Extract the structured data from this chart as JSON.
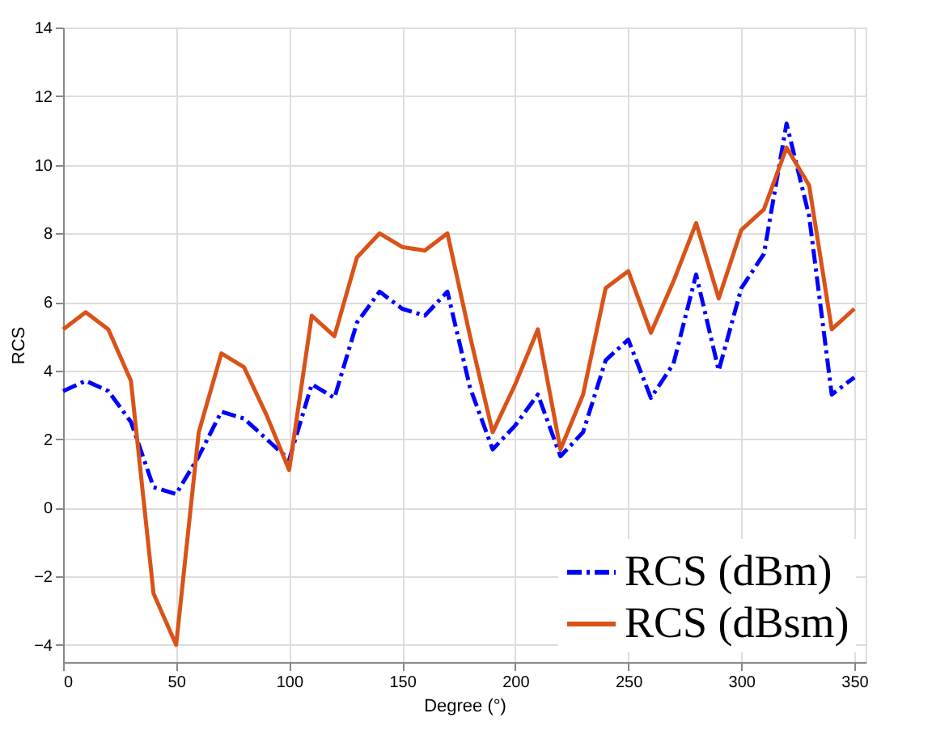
{
  "chart_data": {
    "type": "line",
    "xlabel": "Degree (°)",
    "ylabel": "RCS",
    "x": [
      0,
      10,
      20,
      30,
      40,
      50,
      60,
      70,
      80,
      90,
      100,
      110,
      120,
      130,
      140,
      150,
      160,
      170,
      180,
      190,
      200,
      210,
      220,
      230,
      240,
      250,
      260,
      270,
      280,
      290,
      300,
      310,
      320,
      330,
      340,
      350
    ],
    "series": [
      {
        "name": "RCS (dBm)",
        "color": "#0000ff",
        "line_style": "dashed",
        "values": [
          3.4,
          3.7,
          3.4,
          2.5,
          0.6,
          0.4,
          1.5,
          2.8,
          2.6,
          2.0,
          1.4,
          3.6,
          3.2,
          5.4,
          6.3,
          5.8,
          5.6,
          6.3,
          3.5,
          1.7,
          2.4,
          3.3,
          1.5,
          2.2,
          4.3,
          4.9,
          3.2,
          4.2,
          6.8,
          4.0,
          6.4,
          7.4,
          11.2,
          8.5,
          3.3,
          3.8
        ]
      },
      {
        "name": "RCS (dBsm)",
        "color": "#d95319",
        "line_style": "solid",
        "values": [
          5.2,
          5.7,
          5.2,
          3.7,
          -2.5,
          -4.0,
          2.2,
          4.5,
          4.1,
          2.7,
          1.1,
          5.6,
          5.0,
          7.3,
          8.0,
          7.6,
          7.5,
          8.0,
          5.0,
          2.2,
          3.6,
          5.2,
          1.7,
          3.3,
          6.4,
          6.9,
          5.1,
          6.6,
          8.3,
          6.1,
          8.1,
          8.7,
          10.5,
          9.4,
          5.2,
          5.8
        ]
      }
    ],
    "xlim": [
      0,
      355
    ],
    "xticks": [
      0,
      50,
      100,
      150,
      200,
      250,
      300,
      350
    ],
    "ylim": [
      -4.5,
      14
    ],
    "yticks": [
      -4,
      -2,
      0,
      2,
      4,
      6,
      8,
      10,
      12,
      14
    ],
    "grid": true,
    "legend": "bottom right",
    "marker": "none"
  }
}
